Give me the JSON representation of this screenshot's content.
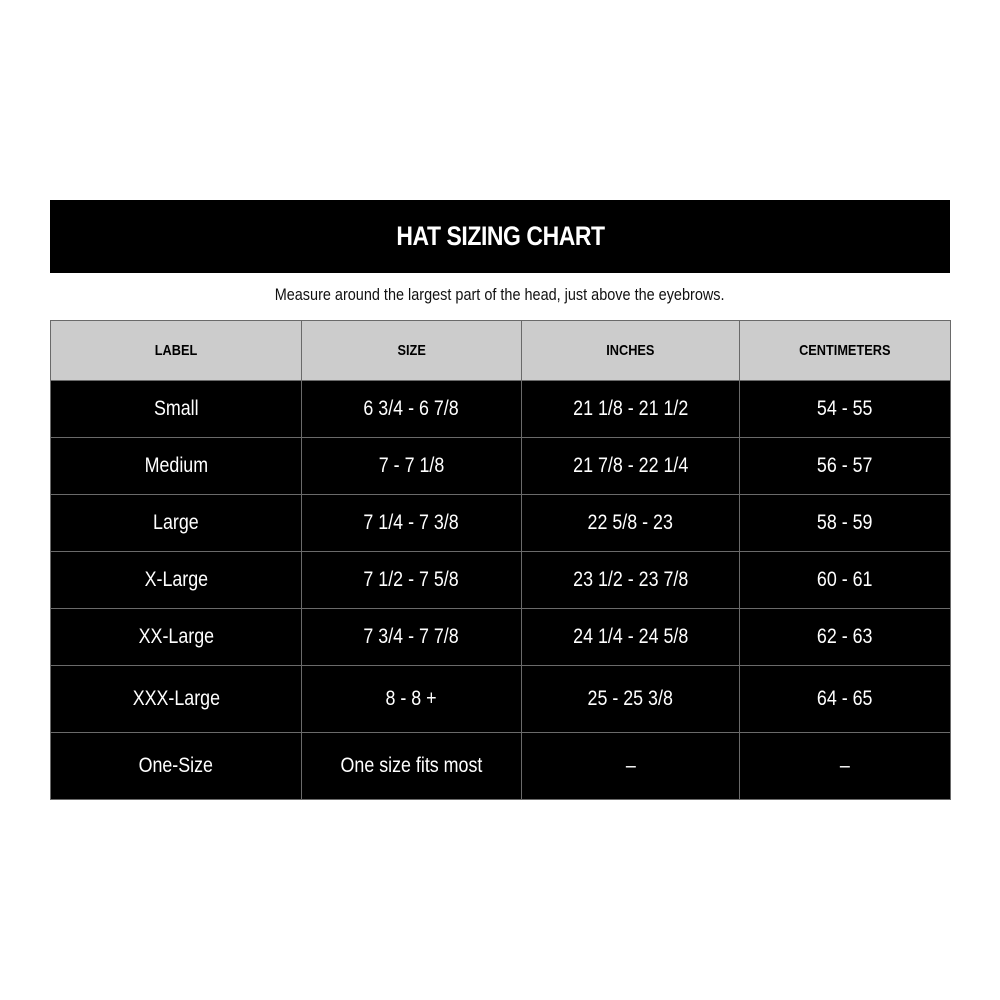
{
  "title": "HAT SIZING CHART",
  "subtitle": "Measure around the largest part of the head, just above the eyebrows.",
  "table": {
    "headers": [
      "LABEL",
      "SIZE",
      "INCHES",
      "CENTIMETERS"
    ],
    "rows": [
      [
        "Small",
        "6 3/4 - 6 7/8",
        "21 1/8 - 21 1/2",
        "54 - 55"
      ],
      [
        "Medium",
        "7 - 7 1/8",
        "21 7/8 - 22 1/4",
        "56 - 57"
      ],
      [
        "Large",
        "7 1/4 - 7 3/8",
        "22 5/8 - 23",
        "58 - 59"
      ],
      [
        "X-Large",
        "7 1/2 - 7 5/8",
        "23 1/2 - 23 7/8",
        "60 - 61"
      ],
      [
        "XX-Large",
        "7 3/4 - 7 7/8",
        "24 1/4 - 24 5/8",
        "62 - 63"
      ],
      [
        "XXX-Large",
        "8 - 8 +",
        "25 - 25 3/8",
        "64 - 65"
      ],
      [
        "One-Size",
        "One size fits most",
        "–",
        "–"
      ]
    ]
  }
}
